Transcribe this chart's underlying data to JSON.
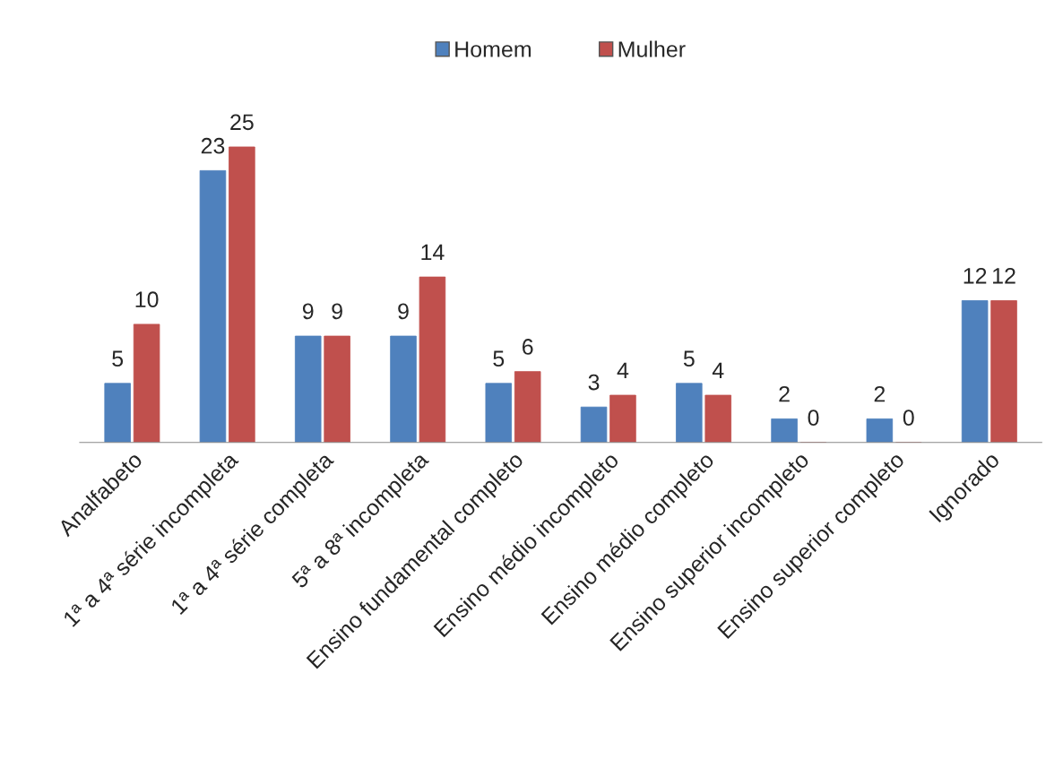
{
  "chart_data": {
    "type": "bar",
    "categories": [
      "Analfabeto",
      "1ª a 4ª série incompleta",
      "1ª a 4ª série completa",
      "5ª a 8ª incompleta",
      "Ensino fundamental completo",
      "Ensino médio incompleto",
      "Ensino médio completo",
      "Ensino superior incompleto",
      "Ensino superior completo",
      "Ignorado"
    ],
    "series": [
      {
        "name": "Homem",
        "color": "#4f81bd",
        "values": [
          5,
          23,
          9,
          9,
          5,
          3,
          5,
          2,
          2,
          12
        ]
      },
      {
        "name": "Mulher",
        "color": "#c0504d",
        "values": [
          10,
          25,
          9,
          14,
          6,
          4,
          4,
          0,
          0,
          12
        ]
      }
    ],
    "data_labels": true,
    "legend": "top",
    "grid": false
  }
}
